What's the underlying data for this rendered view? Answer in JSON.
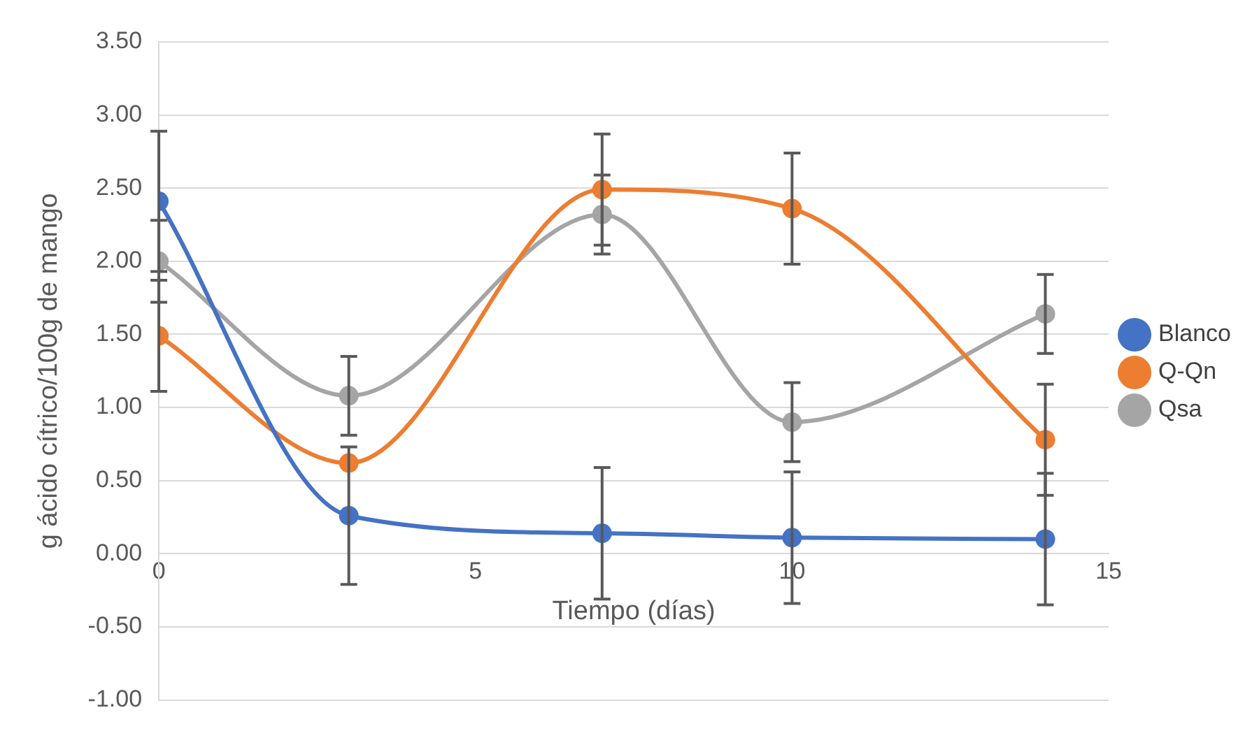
{
  "chart_data": {
    "type": "line",
    "xlabel": "Tiempo (días)",
    "ylabel": "g ácido cítrico/100g de mango",
    "x": [
      0,
      3,
      7,
      10,
      14
    ],
    "series": [
      {
        "name": "Blanco",
        "color": "#4472c4",
        "values": [
          2.41,
          0.26,
          0.14,
          0.11,
          0.1
        ],
        "errors": [
          0.48,
          0.47,
          0.45,
          0.45,
          0.45
        ]
      },
      {
        "name": "Q-Qn",
        "color": "#ed7d31",
        "values": [
          1.49,
          0.62,
          2.49,
          2.36,
          0.78
        ],
        "errors": [
          0.38,
          null,
          0.38,
          0.38,
          0.38
        ]
      },
      {
        "name": "Qsa",
        "color": "#a5a5a5",
        "values": [
          2.0,
          1.08,
          2.32,
          0.9,
          1.64
        ],
        "errors": [
          0.28,
          0.27,
          0.27,
          0.27,
          0.27
        ]
      }
    ],
    "xlim": [
      0,
      15
    ],
    "xticks": [
      0,
      5,
      10,
      15
    ],
    "ylim": [
      -1,
      3.5
    ],
    "yticks": [
      {
        "value": -1,
        "label": "-1.00"
      },
      {
        "value": -0.5,
        "label": "-0.50"
      },
      {
        "value": 0,
        "label": "0.00"
      },
      {
        "value": 0.5,
        "label": "0.50"
      },
      {
        "value": 1,
        "label": "1.00"
      },
      {
        "value": 1.5,
        "label": "1.50"
      },
      {
        "value": 2,
        "label": "2.00"
      },
      {
        "value": 2.5,
        "label": "2.50"
      },
      {
        "value": 3,
        "label": "3.00"
      },
      {
        "value": 3.5,
        "label": "3.50"
      }
    ],
    "grid": "y",
    "legend": "right",
    "marker": "circle",
    "line_style": "solid"
  }
}
